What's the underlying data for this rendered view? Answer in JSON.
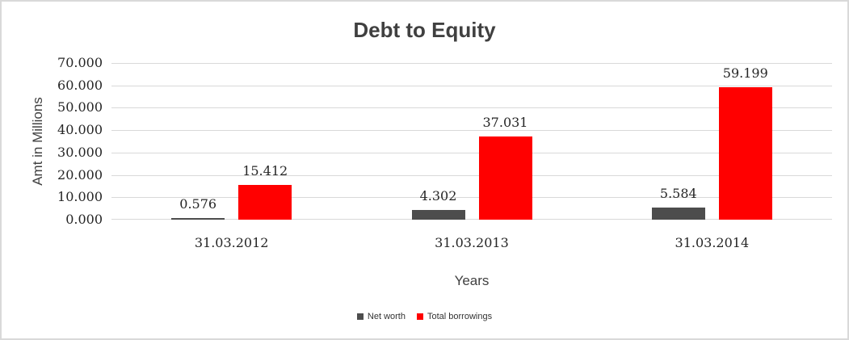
{
  "frame": {
    "background_color": "#ffffff",
    "border_color": "#d9d9d9"
  },
  "chart_data": {
    "type": "bar",
    "title": "Debt to Equity",
    "xlabel": "Years",
    "ylabel": "Amt in Millions",
    "categories": [
      "31.03.2012",
      "31.03.2013",
      "31.03.2014"
    ],
    "series": [
      {
        "name": "Net worth",
        "color": "#4d4d4d",
        "values": [
          0.576,
          4.302,
          5.584
        ]
      },
      {
        "name": "Total borrowings",
        "color": "#ff0000",
        "values": [
          15.412,
          37.031,
          59.199
        ]
      }
    ],
    "ylim": [
      0,
      70
    ],
    "ytick_step": 10,
    "ytick_labels": [
      "0.000",
      "10.000",
      "20.000",
      "30.000",
      "40.000",
      "50.000",
      "60.000",
      "70.000"
    ],
    "value_label_decimals": 3,
    "grid": true,
    "gridline_color": "#d9d9d9",
    "legend_position": "bottom",
    "title_color": "#404040",
    "axis_title_color": "#404040",
    "tick_label_color": "#262626"
  }
}
